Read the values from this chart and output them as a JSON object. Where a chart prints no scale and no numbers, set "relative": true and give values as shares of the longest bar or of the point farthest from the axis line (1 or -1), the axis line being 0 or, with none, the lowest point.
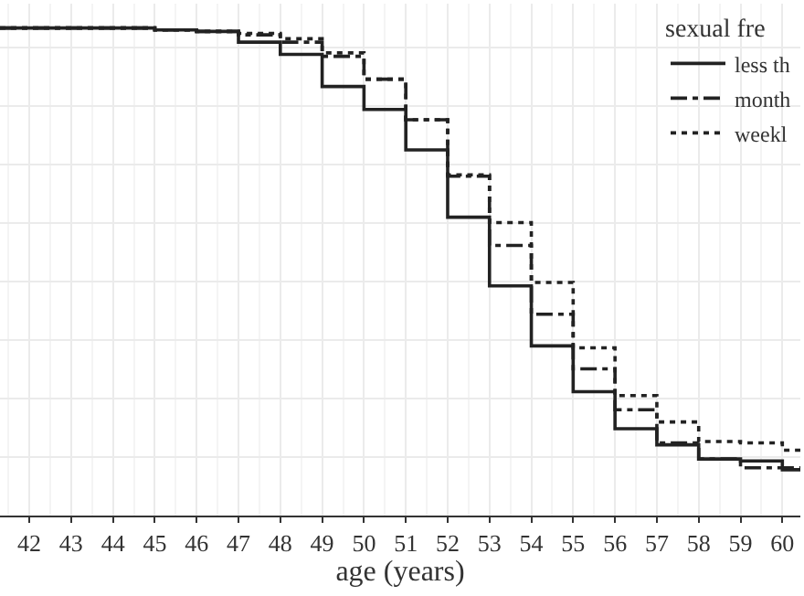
{
  "chart_data": {
    "type": "step",
    "relative": true,
    "xlabel": "age (years)",
    "legend_title": "sexual fre",
    "legend": "top right",
    "grid": true,
    "x": [
      41.3,
      45,
      46,
      47,
      48,
      49,
      50,
      51,
      52,
      53,
      54,
      55,
      56,
      57,
      58,
      59,
      60,
      60.43
    ],
    "xlim": [
      41.3,
      60.43
    ],
    "xticks": [
      42,
      43,
      44,
      45,
      46,
      47,
      48,
      49,
      50,
      51,
      52,
      53,
      54,
      55,
      56,
      57,
      58,
      59,
      60
    ],
    "series": [
      {
        "name": "less th",
        "color": "#222222",
        "line_style": "solid",
        "values": [
          1.0,
          0.996,
          0.993,
          0.971,
          0.946,
          0.88,
          0.833,
          0.75,
          0.612,
          0.471,
          0.348,
          0.254,
          0.178,
          0.145,
          0.116,
          0.112,
          0.094,
          0.094
        ]
      },
      {
        "name": "month",
        "color": "#222222",
        "line_style": "dashdot",
        "values": [
          1.0,
          0.996,
          0.993,
          0.986,
          0.971,
          0.942,
          0.895,
          0.812,
          0.696,
          0.554,
          0.413,
          0.301,
          0.217,
          0.149,
          0.116,
          0.098,
          0.098,
          0.098
        ]
      },
      {
        "name": "weekl",
        "color": "#222222",
        "line_style": "dotted",
        "values": [
          1.0,
          0.996,
          0.993,
          0.989,
          0.978,
          0.949,
          0.895,
          0.812,
          0.699,
          0.601,
          0.478,
          0.344,
          0.246,
          0.192,
          0.152,
          0.149,
          0.134,
          0.134
        ]
      }
    ]
  }
}
